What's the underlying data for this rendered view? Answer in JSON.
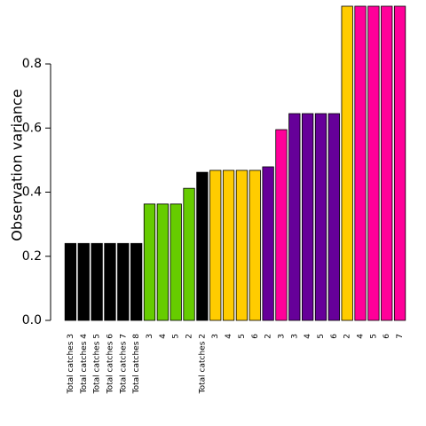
{
  "chart_data": {
    "type": "bar",
    "y_label": "Observation variance",
    "categories": [
      "Total catches 3",
      "Total catches 4",
      "Total catches 5",
      "Total catches 6",
      "Total catches 7",
      "Total catches 8",
      "3",
      "4",
      "5",
      "2",
      "Total catches 2",
      "3",
      "4",
      "5",
      "6",
      "2",
      "3",
      "3",
      "4",
      "5",
      "6",
      "2",
      "4",
      "5",
      "6",
      "7"
    ],
    "values": [
      0.24,
      0.24,
      0.24,
      0.24,
      0.24,
      0.24,
      0.363,
      0.363,
      0.363,
      0.412,
      0.462,
      0.468,
      0.468,
      0.468,
      0.468,
      0.479,
      0.595,
      0.645,
      0.645,
      0.645,
      0.645,
      0.98,
      0.98,
      0.98,
      0.98,
      0.98
    ],
    "colors": [
      "#000000",
      "#000000",
      "#000000",
      "#000000",
      "#000000",
      "#000000",
      "#66cc00",
      "#66cc00",
      "#66cc00",
      "#66cc00",
      "#000000",
      "#ffcc00",
      "#ffcc00",
      "#ffcc00",
      "#ffcc00",
      "#660099",
      "#ff0099",
      "#660099",
      "#660099",
      "#660099",
      "#660099",
      "#ffcc00",
      "#ff0099",
      "#ff0099",
      "#ff0099",
      "#ff0099"
    ],
    "ylim": [
      0,
      0.98
    ],
    "yticks": [
      {
        "value": 0,
        "label": "0.0"
      },
      {
        "value": 0.2,
        "label": "0.2"
      },
      {
        "value": 0.4,
        "label": "0.4"
      },
      {
        "value": 0.6,
        "label": "0.6"
      },
      {
        "value": 0.8,
        "label": "0.8"
      }
    ]
  }
}
